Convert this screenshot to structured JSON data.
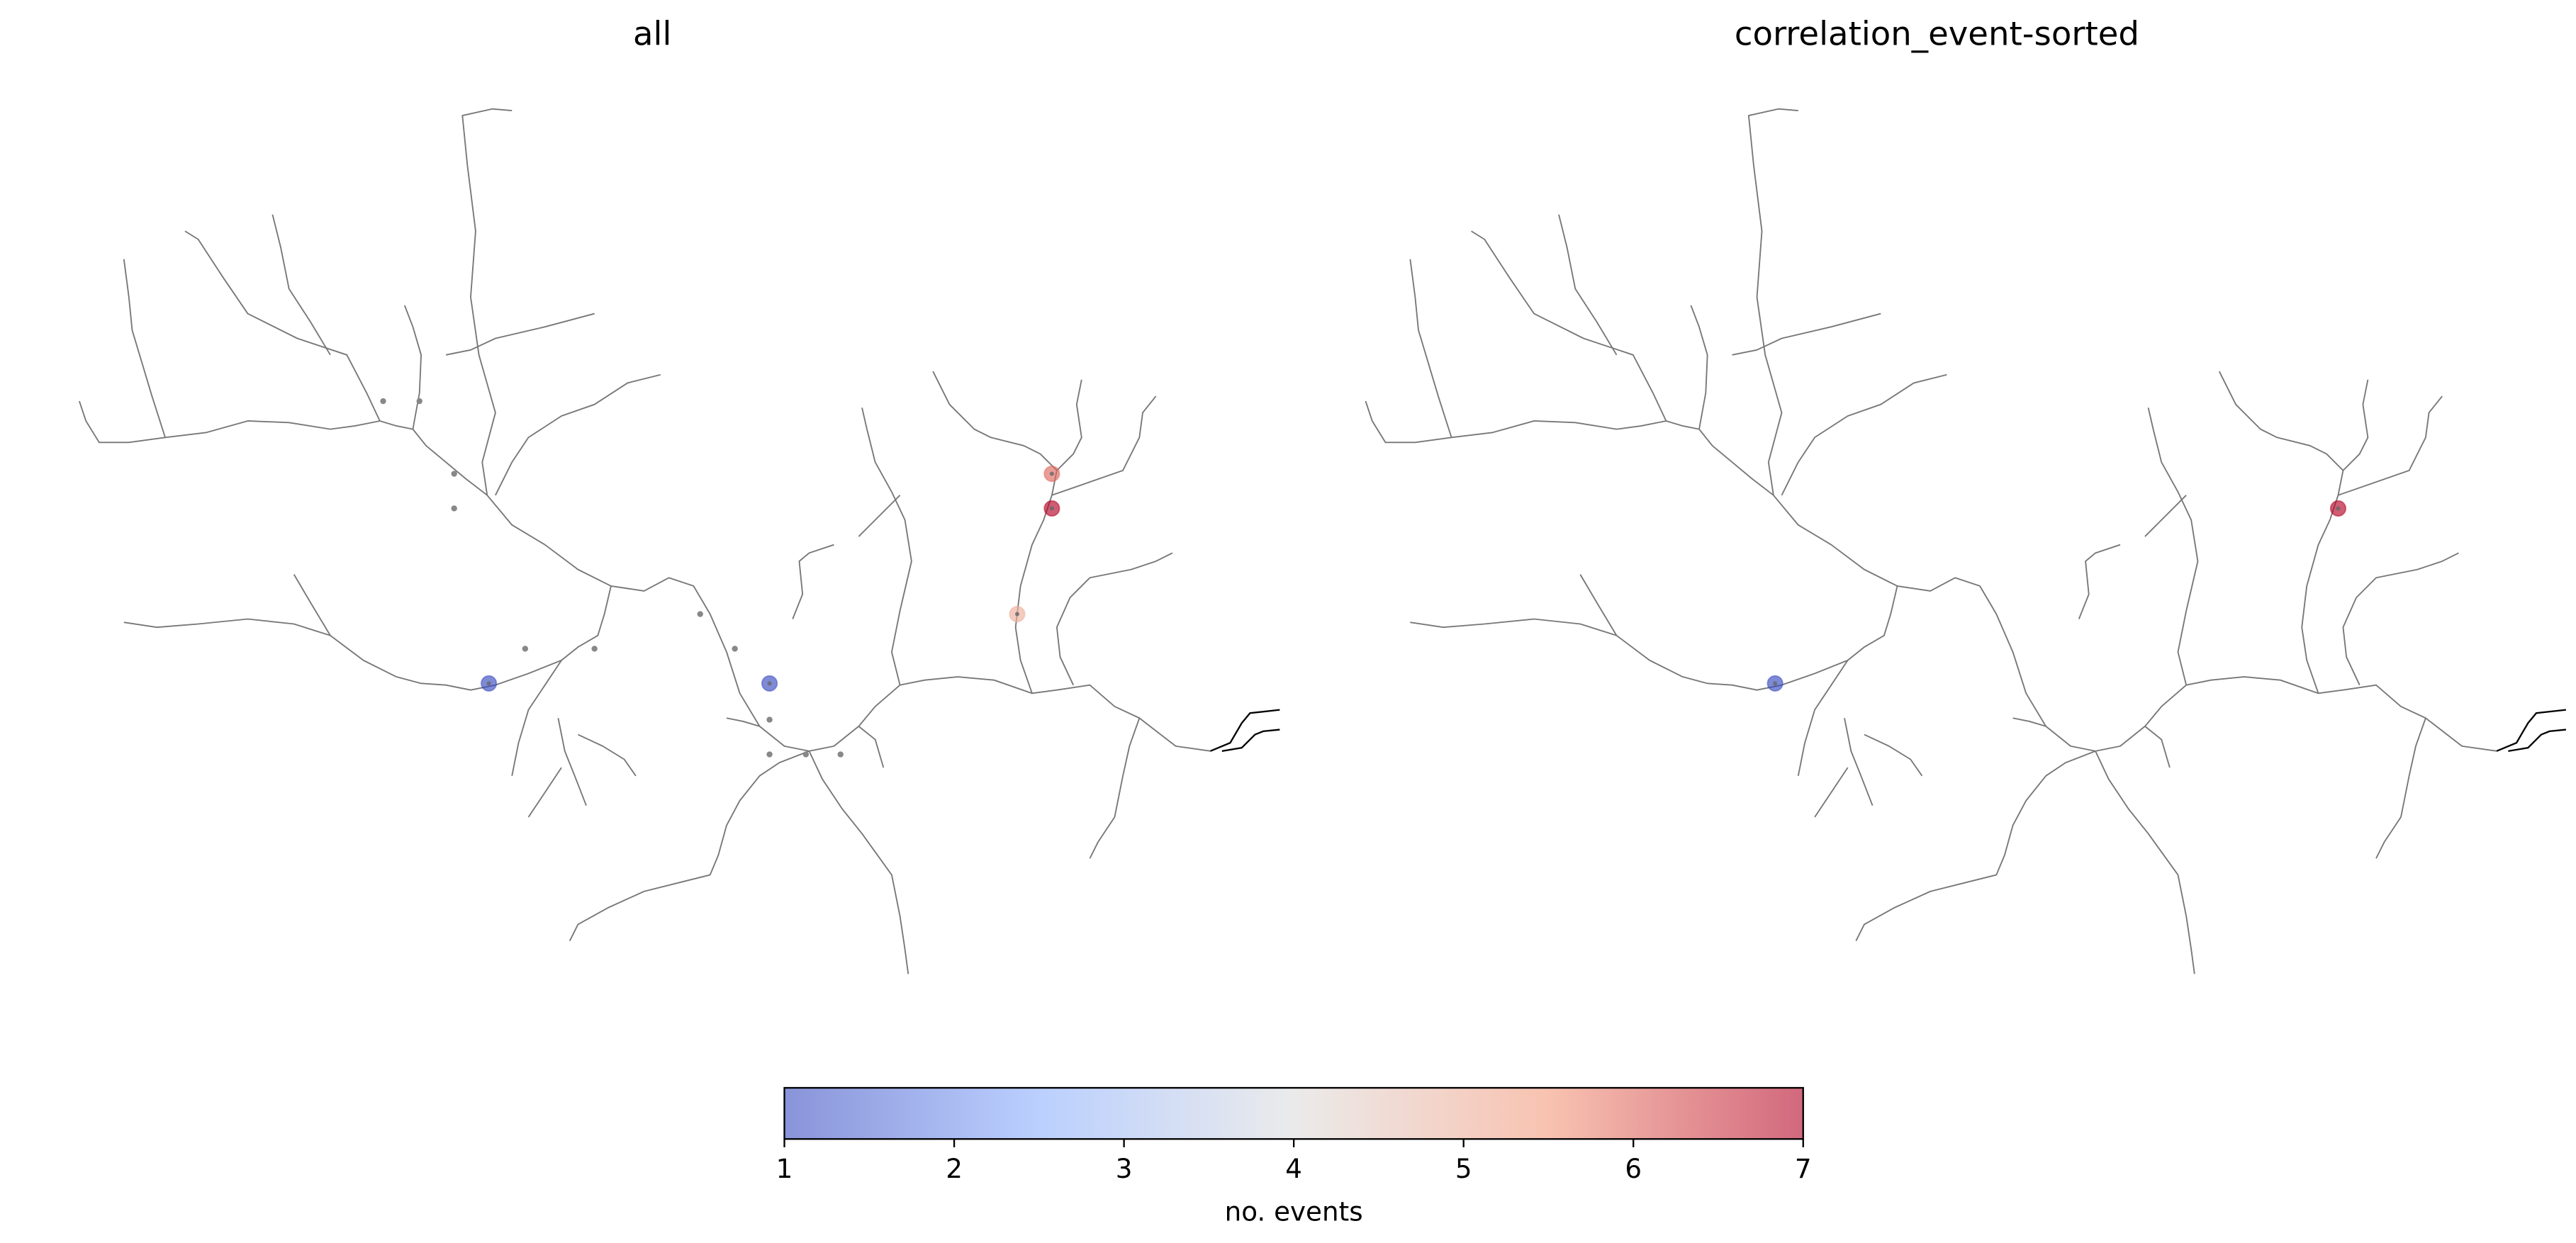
{
  "chart_data": [
    {
      "type": "scatter",
      "title": "all",
      "values": [
        1,
        1,
        6,
        7,
        5
      ]
    },
    {
      "type": "scatter",
      "title": "correlation_event-sorted",
      "values": [
        1,
        7
      ]
    }
  ],
  "colorbar": {
    "label": "no. events",
    "lim": [
      1,
      7
    ],
    "ticks": [
      1,
      2,
      3,
      4,
      5,
      6,
      7
    ],
    "colormap": "coolwarm"
  }
}
